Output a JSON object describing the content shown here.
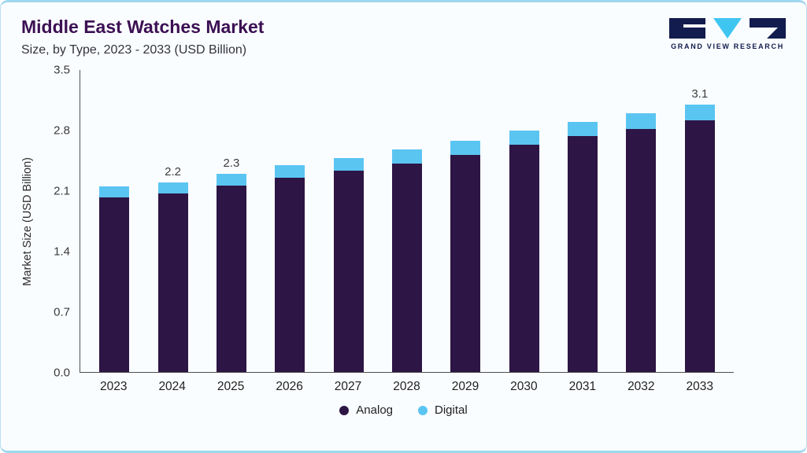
{
  "header": {
    "title": "Middle East Watches Market",
    "subtitle": "Size, by Type, 2023 - 2033 (USD Billion)",
    "logo_text": "GRAND VIEW RESEARCH"
  },
  "chart_data": {
    "type": "bar",
    "stacked": true,
    "title": "Middle East Watches Market Size, by Type, 2023 - 2033 (USD Billion)",
    "categories": [
      "2023",
      "2024",
      "2025",
      "2026",
      "2027",
      "2028",
      "2029",
      "2030",
      "2031",
      "2032",
      "2033"
    ],
    "series": [
      {
        "name": "Analog",
        "color": "#2d1545",
        "values": [
          2.02,
          2.07,
          2.16,
          2.25,
          2.33,
          2.42,
          2.52,
          2.63,
          2.73,
          2.82,
          2.92
        ]
      },
      {
        "name": "Digital",
        "color": "#5bc5f2",
        "values": [
          0.13,
          0.13,
          0.14,
          0.15,
          0.15,
          0.16,
          0.16,
          0.17,
          0.17,
          0.18,
          0.18
        ]
      }
    ],
    "totals": [
      2.15,
      2.2,
      2.3,
      2.4,
      2.48,
      2.58,
      2.68,
      2.8,
      2.9,
      3.0,
      3.1
    ],
    "bar_labels": [
      "",
      "2.2",
      "2.3",
      "",
      "",
      "",
      "",
      "",
      "",
      "",
      "3.1"
    ],
    "ylabel": "Market Size (USD Billion)",
    "xlabel": "",
    "yticks": [
      0.0,
      0.7,
      1.4,
      2.1,
      2.8,
      3.5
    ],
    "ylim": [
      0,
      3.5
    ],
    "grid": false,
    "legend_position": "bottom"
  },
  "colors": {
    "accent_border": "#9fd7ef",
    "title": "#3c1053",
    "logo_navy": "#121c4e",
    "logo_cyan": "#3fc6f0",
    "axis": "#4f4f4f"
  }
}
